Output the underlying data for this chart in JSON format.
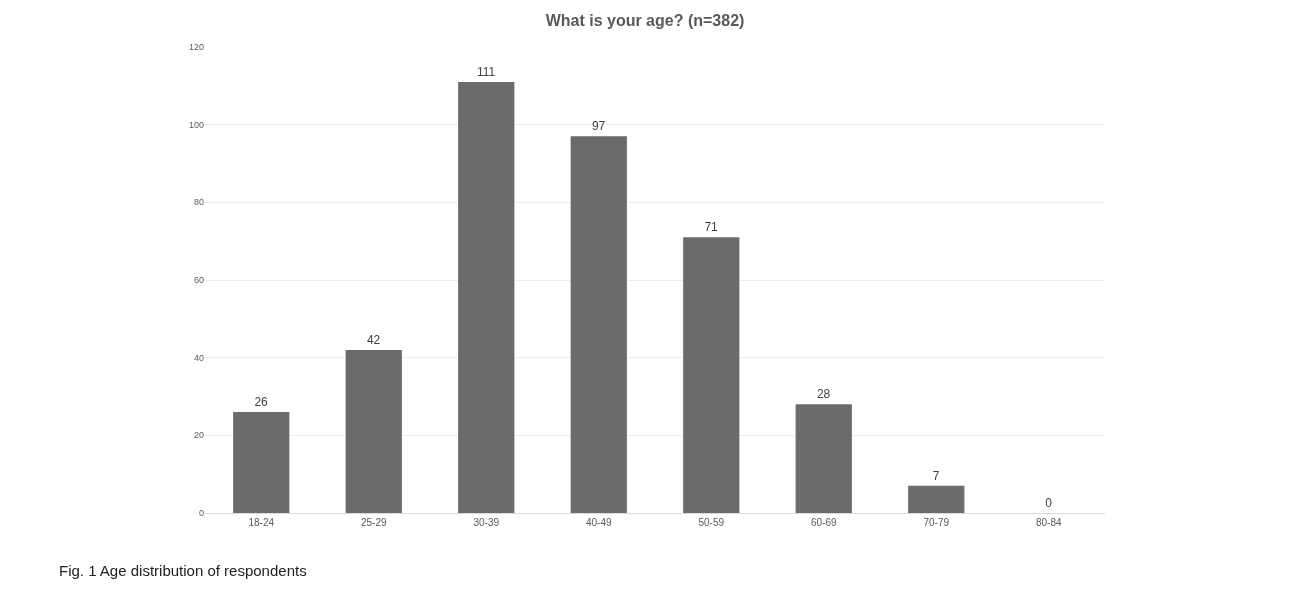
{
  "chart_data": {
    "type": "bar",
    "title": "What is your age? (n=382)",
    "categories": [
      "18-24",
      "25-29",
      "30-39",
      "40-49",
      "50-59",
      "60-69",
      "70-79",
      "80-84"
    ],
    "values": [
      26,
      42,
      111,
      97,
      71,
      28,
      7,
      0
    ],
    "color": "#6b6b6b",
    "ylim": [
      0,
      120
    ],
    "yticks": [
      0,
      20,
      40,
      60,
      80,
      100,
      120
    ],
    "grid": "y",
    "data_labels": true,
    "annotations": [
      "Fig. 1 Age distribution of respondents"
    ]
  }
}
